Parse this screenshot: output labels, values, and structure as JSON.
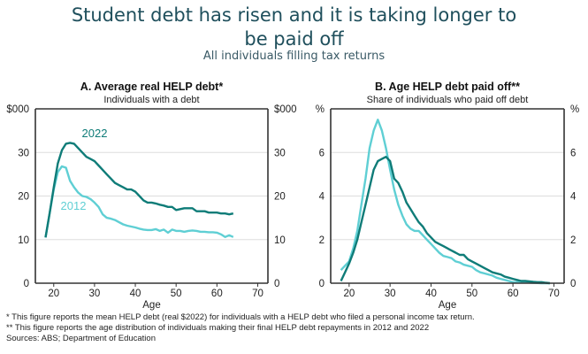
{
  "header": {
    "title_line1": "Student debt has risen and it is taking longer to",
    "title_line2": "be paid off",
    "subtitle": "All individuals filling tax returns"
  },
  "colors": {
    "series_2022": "#0f7c78",
    "series_2012": "#5fcfd4",
    "grid": "#dddddd",
    "axis": "#333333"
  },
  "chart_data": [
    {
      "type": "line",
      "title": "A. Average real HELP debt*",
      "subtitle": "Individuals with a debt",
      "xlabel": "Age",
      "ylabel_left": "$000",
      "ylabel_right": "$000",
      "xlim": [
        15.5,
        72.5
      ],
      "ylim": [
        0,
        40
      ],
      "xticks": [
        20,
        30,
        40,
        50,
        60,
        70
      ],
      "yticks": [
        0,
        10,
        20,
        30
      ],
      "grid": true,
      "annotations": [
        {
          "text": "2022",
          "series": "2022"
        },
        {
          "text": "2012",
          "series": "2012"
        }
      ],
      "x": [
        18,
        19,
        20,
        21,
        22,
        23,
        24,
        25,
        26,
        27,
        28,
        29,
        30,
        31,
        32,
        33,
        34,
        35,
        36,
        37,
        38,
        39,
        40,
        41,
        42,
        43,
        44,
        45,
        46,
        47,
        48,
        49,
        50,
        51,
        52,
        53,
        54,
        55,
        56,
        57,
        58,
        59,
        60,
        61,
        62,
        63,
        64
      ],
      "series": [
        {
          "name": "2022",
          "values": [
            10.5,
            16,
            22,
            27.5,
            30.5,
            32,
            32.2,
            32,
            31,
            30,
            29,
            28.5,
            28,
            27,
            26,
            25,
            24,
            23,
            22.5,
            22,
            21.5,
            21.5,
            21,
            20,
            19,
            18.5,
            18.5,
            18.3,
            18,
            17.8,
            17.5,
            17.5,
            16.8,
            17,
            17.2,
            17.2,
            17.2,
            16.5,
            16.5,
            16.5,
            16.2,
            16.2,
            16.2,
            16,
            16,
            15.8,
            16
          ]
        },
        {
          "name": "2012",
          "values": [
            10.5,
            16,
            21.5,
            25.5,
            26.8,
            26.5,
            23.5,
            22,
            20.8,
            20,
            19.8,
            19.3,
            18.5,
            17.5,
            15.8,
            15,
            14.8,
            14.5,
            14,
            13.5,
            13.2,
            13,
            12.8,
            12.5,
            12.3,
            12.2,
            12.2,
            12.4,
            12,
            12.3,
            11.6,
            12.3,
            12,
            12,
            11.8,
            12,
            12.1,
            12,
            11.8,
            11.8,
            11.7,
            11.7,
            11.6,
            11.2,
            10.6,
            11,
            10.6
          ]
        }
      ]
    },
    {
      "type": "line",
      "title": "B. Age HELP debt paid off**",
      "subtitle": "Share of individuals who paid off debt",
      "xlabel": "Age",
      "ylabel_left": "%",
      "ylabel_right": "%",
      "xlim": [
        15.5,
        72.5
      ],
      "ylim": [
        0,
        8
      ],
      "xticks": [
        20,
        30,
        40,
        50,
        60,
        70
      ],
      "yticks": [
        0,
        2,
        4,
        6
      ],
      "grid": true,
      "x": [
        18,
        19,
        20,
        21,
        22,
        23,
        24,
        25,
        26,
        27,
        28,
        29,
        30,
        31,
        32,
        33,
        34,
        35,
        36,
        37,
        38,
        39,
        40,
        41,
        42,
        43,
        44,
        45,
        46,
        47,
        48,
        49,
        50,
        51,
        52,
        53,
        54,
        55,
        56,
        57,
        58,
        59,
        60,
        61,
        62,
        63,
        64,
        65,
        66,
        67,
        68,
        69
      ],
      "series": [
        {
          "name": "2022",
          "values": [
            0.1,
            0.5,
            0.9,
            1.4,
            2.0,
            2.8,
            3.6,
            4.4,
            5.2,
            5.6,
            5.7,
            5.8,
            5.6,
            4.8,
            4.6,
            4.2,
            3.7,
            3.4,
            3.1,
            2.8,
            2.6,
            2.3,
            2.1,
            1.9,
            1.8,
            1.7,
            1.6,
            1.5,
            1.4,
            1.3,
            1.3,
            1.1,
            1.0,
            0.9,
            0.8,
            0.7,
            0.6,
            0.5,
            0.45,
            0.4,
            0.3,
            0.25,
            0.2,
            0.15,
            0.1,
            0.1,
            0.08,
            0.06,
            0.05,
            0.05,
            0.02,
            0.0
          ]
        },
        {
          "name": "2012",
          "values": [
            0.6,
            0.8,
            1.0,
            1.6,
            2.4,
            3.6,
            4.8,
            6.2,
            7.0,
            7.5,
            7.0,
            6.2,
            5.2,
            4.3,
            3.6,
            3.1,
            2.7,
            2.5,
            2.4,
            2.4,
            2.2,
            2.0,
            1.8,
            1.6,
            1.4,
            1.25,
            1.2,
            1.15,
            1.0,
            0.95,
            0.85,
            0.8,
            0.75,
            0.6,
            0.5,
            0.45,
            0.4,
            0.35,
            0.25,
            0.2,
            0.15,
            0.1,
            0.05,
            0.05,
            0.05,
            0.05,
            0.03,
            0.02,
            0.01,
            0.0,
            0.0,
            0.0
          ]
        }
      ]
    }
  ],
  "footnotes": [
    "* This figure reports the mean HELP debt (real $2022) for individuals with a HELP debt who filed a personal income tax return.",
    "** This figure reports the age distribution of individuals making their final HELP debt repayments in 2012 and 2022",
    "Sources: ABS; Department of Education"
  ]
}
